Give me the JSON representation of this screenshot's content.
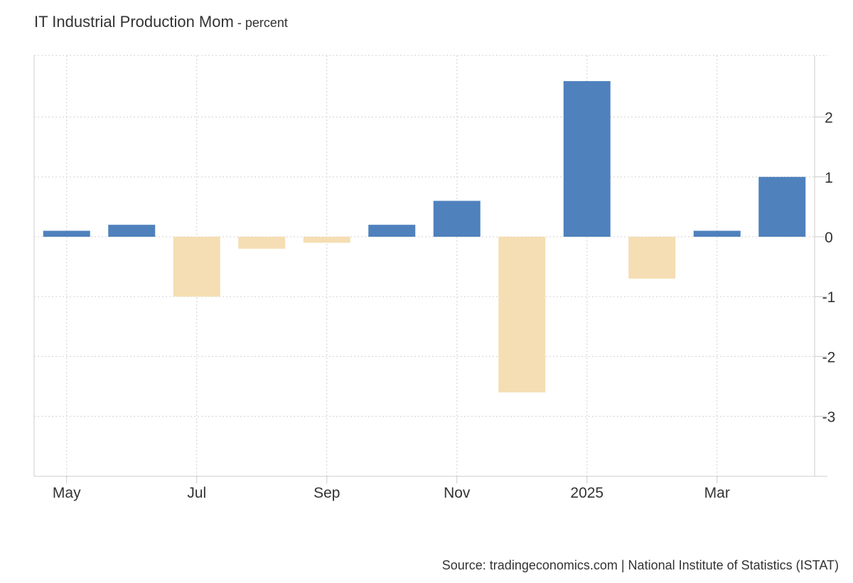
{
  "header": {
    "title": "IT Industrial Production Mom",
    "separator": " - ",
    "unit": "percent"
  },
  "footer": {
    "source": "Source: tradingeconomics.com | National Institute of Statistics (ISTAT)"
  },
  "colors": {
    "positive": "#4f81bd",
    "negative": "#f5deb3",
    "grid": "#d9d9d9",
    "axis": "#cccccc",
    "text": "#333333"
  },
  "chart_data": {
    "type": "bar",
    "categories": [
      "May 2024",
      "Jun 2024",
      "Jul 2024",
      "Aug 2024",
      "Sep 2024",
      "Oct 2024",
      "Nov 2024",
      "Dec 2024",
      "Jan 2025",
      "Feb 2025",
      "Mar 2025",
      "Apr 2025"
    ],
    "values": [
      0.1,
      0.2,
      -1.0,
      -0.2,
      -0.1,
      0.2,
      0.6,
      -2.6,
      2.6,
      -0.7,
      0.1,
      1.0
    ],
    "x_tick_labels": [
      {
        "index": 0,
        "label": "May"
      },
      {
        "index": 2,
        "label": "Jul"
      },
      {
        "index": 4,
        "label": "Sep"
      },
      {
        "index": 6,
        "label": "Nov"
      },
      {
        "index": 8,
        "label": "2025"
      },
      {
        "index": 10,
        "label": "Mar"
      }
    ],
    "y_ticks": [
      2,
      1,
      0,
      -1,
      -2,
      -3
    ],
    "ylim": [
      -4,
      3
    ],
    "ylabel": "",
    "xlabel": "",
    "grid": true,
    "legend": false,
    "y_axis_position": "right"
  }
}
